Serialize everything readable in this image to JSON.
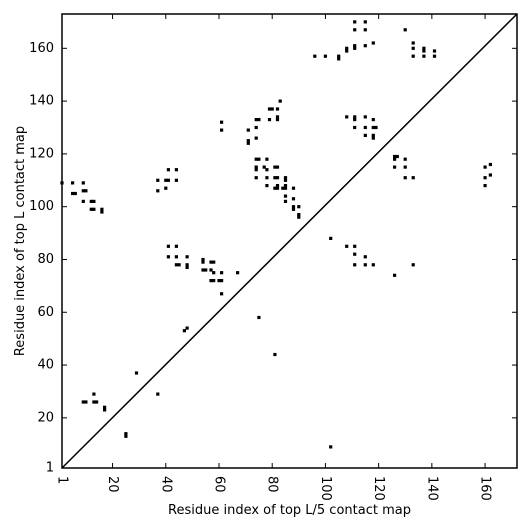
{
  "chart_data": {
    "type": "scatter",
    "title": "",
    "xlabel": "Residue index of top L/5 contact map",
    "ylabel": "Residue index of top L contact map",
    "xlim": [
      1,
      172
    ],
    "ylim": [
      1,
      173
    ],
    "xticks": [
      "1",
      "20",
      "40",
      "60",
      "80",
      "100",
      "120",
      "140",
      "160"
    ],
    "xtick_values": [
      1,
      20,
      40,
      60,
      80,
      100,
      120,
      140,
      160
    ],
    "yticks": [
      "1",
      "20",
      "40",
      "60",
      "80",
      "100",
      "120",
      "140",
      "160"
    ],
    "ytick_values": [
      1,
      20,
      40,
      60,
      80,
      100,
      120,
      140,
      160
    ],
    "diagonal": true,
    "grid": false,
    "marker_color": "#000000",
    "series": [
      {
        "points": [
          [
            102,
            9
          ],
          [
            25,
            13
          ],
          [
            25,
            14
          ],
          [
            81,
            44
          ],
          [
            75,
            58
          ],
          [
            61,
            67
          ],
          [
            67,
            75
          ],
          [
            126,
            74
          ],
          [
            102,
            88
          ],
          [
            108,
            85
          ],
          [
            111,
            85
          ],
          [
            111,
            82
          ],
          [
            115,
            81
          ],
          [
            111,
            78
          ],
          [
            115,
            78
          ],
          [
            118,
            78
          ],
          [
            133,
            78
          ],
          [
            96,
            157
          ],
          [
            100,
            157
          ],
          [
            105,
            157
          ],
          [
            105,
            156
          ],
          [
            108,
            160
          ],
          [
            108,
            159
          ],
          [
            111,
            160
          ],
          [
            111,
            161
          ],
          [
            115,
            161
          ],
          [
            118,
            162
          ],
          [
            111,
            167
          ],
          [
            111,
            170
          ],
          [
            115,
            167
          ],
          [
            115,
            170
          ],
          [
            130,
            167
          ],
          [
            133,
            162
          ],
          [
            133,
            160
          ],
          [
            137,
            160
          ],
          [
            137,
            159
          ],
          [
            137,
            157
          ],
          [
            141,
            159
          ],
          [
            141,
            157
          ],
          [
            133,
            157
          ],
          [
            108,
            134
          ],
          [
            111,
            134
          ],
          [
            111,
            133
          ],
          [
            115,
            134
          ],
          [
            111,
            130
          ],
          [
            115,
            130
          ],
          [
            118,
            133
          ],
          [
            118,
            130
          ],
          [
            119,
            130
          ],
          [
            118,
            127
          ],
          [
            118,
            126
          ],
          [
            115,
            127
          ],
          [
            126,
            119
          ],
          [
            127,
            119
          ],
          [
            126,
            118
          ],
          [
            130,
            118
          ],
          [
            126,
            115
          ],
          [
            130,
            115
          ],
          [
            130,
            111
          ],
          [
            133,
            111
          ],
          [
            160,
            115
          ],
          [
            160,
            111
          ],
          [
            160,
            108
          ],
          [
            162,
            116
          ],
          [
            162,
            112
          ]
        ]
      },
      {
        "points": [
          [
            1,
            109
          ],
          [
            5,
            109
          ],
          [
            5,
            105
          ],
          [
            6,
            105
          ],
          [
            9,
            109
          ],
          [
            9,
            106
          ],
          [
            10,
            106
          ],
          [
            9,
            102
          ],
          [
            12,
            102
          ],
          [
            13,
            102
          ],
          [
            12,
            99
          ],
          [
            13,
            99
          ],
          [
            16,
            99
          ],
          [
            16,
            98
          ],
          [
            9,
            26
          ],
          [
            10,
            26
          ],
          [
            13,
            26
          ],
          [
            14,
            26
          ],
          [
            13,
            29
          ],
          [
            17,
            23
          ],
          [
            17,
            24
          ],
          [
            29,
            37
          ],
          [
            37,
            29
          ],
          [
            37,
            110
          ],
          [
            37,
            106
          ],
          [
            40,
            110
          ],
          [
            41,
            110
          ],
          [
            41,
            114
          ],
          [
            44,
            114
          ],
          [
            44,
            110
          ],
          [
            40,
            107
          ],
          [
            41,
            85
          ],
          [
            44,
            85
          ],
          [
            41,
            81
          ],
          [
            44,
            81
          ],
          [
            44,
            78
          ],
          [
            45,
            78
          ],
          [
            48,
            81
          ],
          [
            48,
            78
          ],
          [
            48,
            77
          ],
          [
            47,
            53
          ],
          [
            48,
            54
          ],
          [
            54,
            80
          ],
          [
            54,
            79
          ],
          [
            57,
            79
          ],
          [
            58,
            79
          ],
          [
            54,
            76
          ],
          [
            55,
            76
          ],
          [
            57,
            76
          ],
          [
            58,
            75
          ],
          [
            57,
            72
          ],
          [
            58,
            72
          ],
          [
            60,
            72
          ],
          [
            61,
            72
          ],
          [
            61,
            75
          ],
          [
            61,
            129
          ],
          [
            61,
            132
          ],
          [
            71,
            129
          ],
          [
            71,
            125
          ],
          [
            71,
            124
          ],
          [
            74,
            133
          ],
          [
            75,
            133
          ],
          [
            74,
            130
          ],
          [
            74,
            126
          ],
          [
            74,
            118
          ],
          [
            75,
            118
          ],
          [
            78,
            118
          ],
          [
            74,
            115
          ],
          [
            74,
            114
          ],
          [
            77,
            115
          ],
          [
            78,
            114
          ],
          [
            74,
            111
          ],
          [
            78,
            111
          ],
          [
            78,
            108
          ],
          [
            79,
            137
          ],
          [
            80,
            137
          ],
          [
            79,
            133
          ],
          [
            82,
            137
          ],
          [
            82,
            133
          ],
          [
            82,
            134
          ],
          [
            83,
            140
          ],
          [
            82,
            115
          ],
          [
            81,
            115
          ],
          [
            81,
            111
          ],
          [
            82,
            111
          ],
          [
            82,
            108
          ],
          [
            81,
            107
          ],
          [
            82,
            107
          ],
          [
            84,
            107
          ],
          [
            85,
            107
          ],
          [
            85,
            108
          ],
          [
            85,
            111
          ],
          [
            85,
            110
          ],
          [
            88,
            107
          ],
          [
            85,
            104
          ],
          [
            85,
            102
          ],
          [
            88,
            103
          ],
          [
            88,
            100
          ],
          [
            88,
            99
          ],
          [
            90,
            100
          ],
          [
            90,
            97
          ],
          [
            90,
            96
          ]
        ]
      }
    ]
  }
}
